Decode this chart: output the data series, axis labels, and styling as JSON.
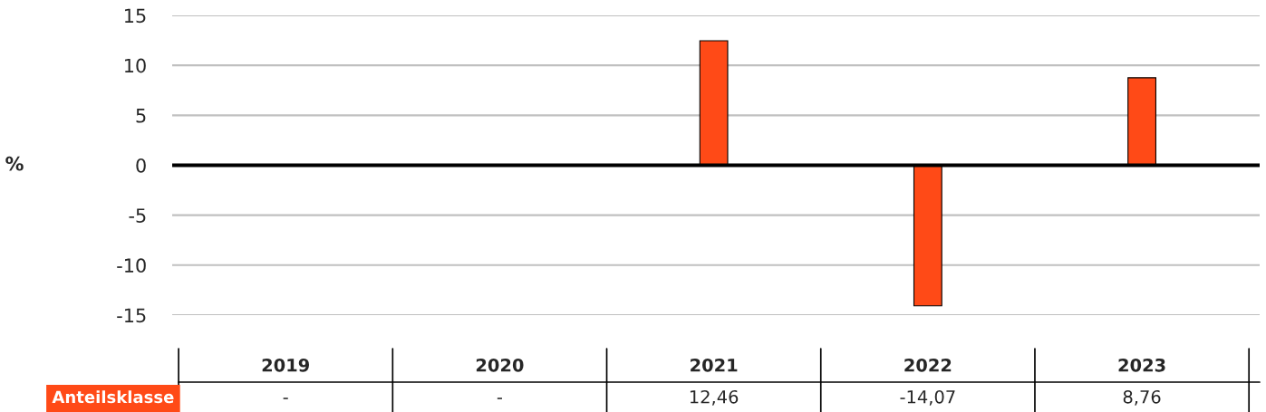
{
  "chart_data": {
    "type": "bar",
    "ylabel": "%",
    "categories": [
      "2019",
      "2020",
      "2021",
      "2022",
      "2023"
    ],
    "series": [
      {
        "name": "Anteilsklasse",
        "color": "#ff4a17",
        "values": [
          null,
          null,
          12.46,
          -14.07,
          8.76
        ],
        "value_labels": [
          "-",
          "-",
          "12,46",
          "-14,07",
          "8,76"
        ]
      }
    ],
    "ylim": [
      -15,
      15
    ],
    "yticks": [
      -15,
      -10,
      -5,
      0,
      5,
      10,
      15
    ],
    "grid": "y",
    "ref_lines": [
      {
        "axis": "y",
        "value": 0,
        "color": "#000000"
      }
    ],
    "tick_labels": "y"
  }
}
